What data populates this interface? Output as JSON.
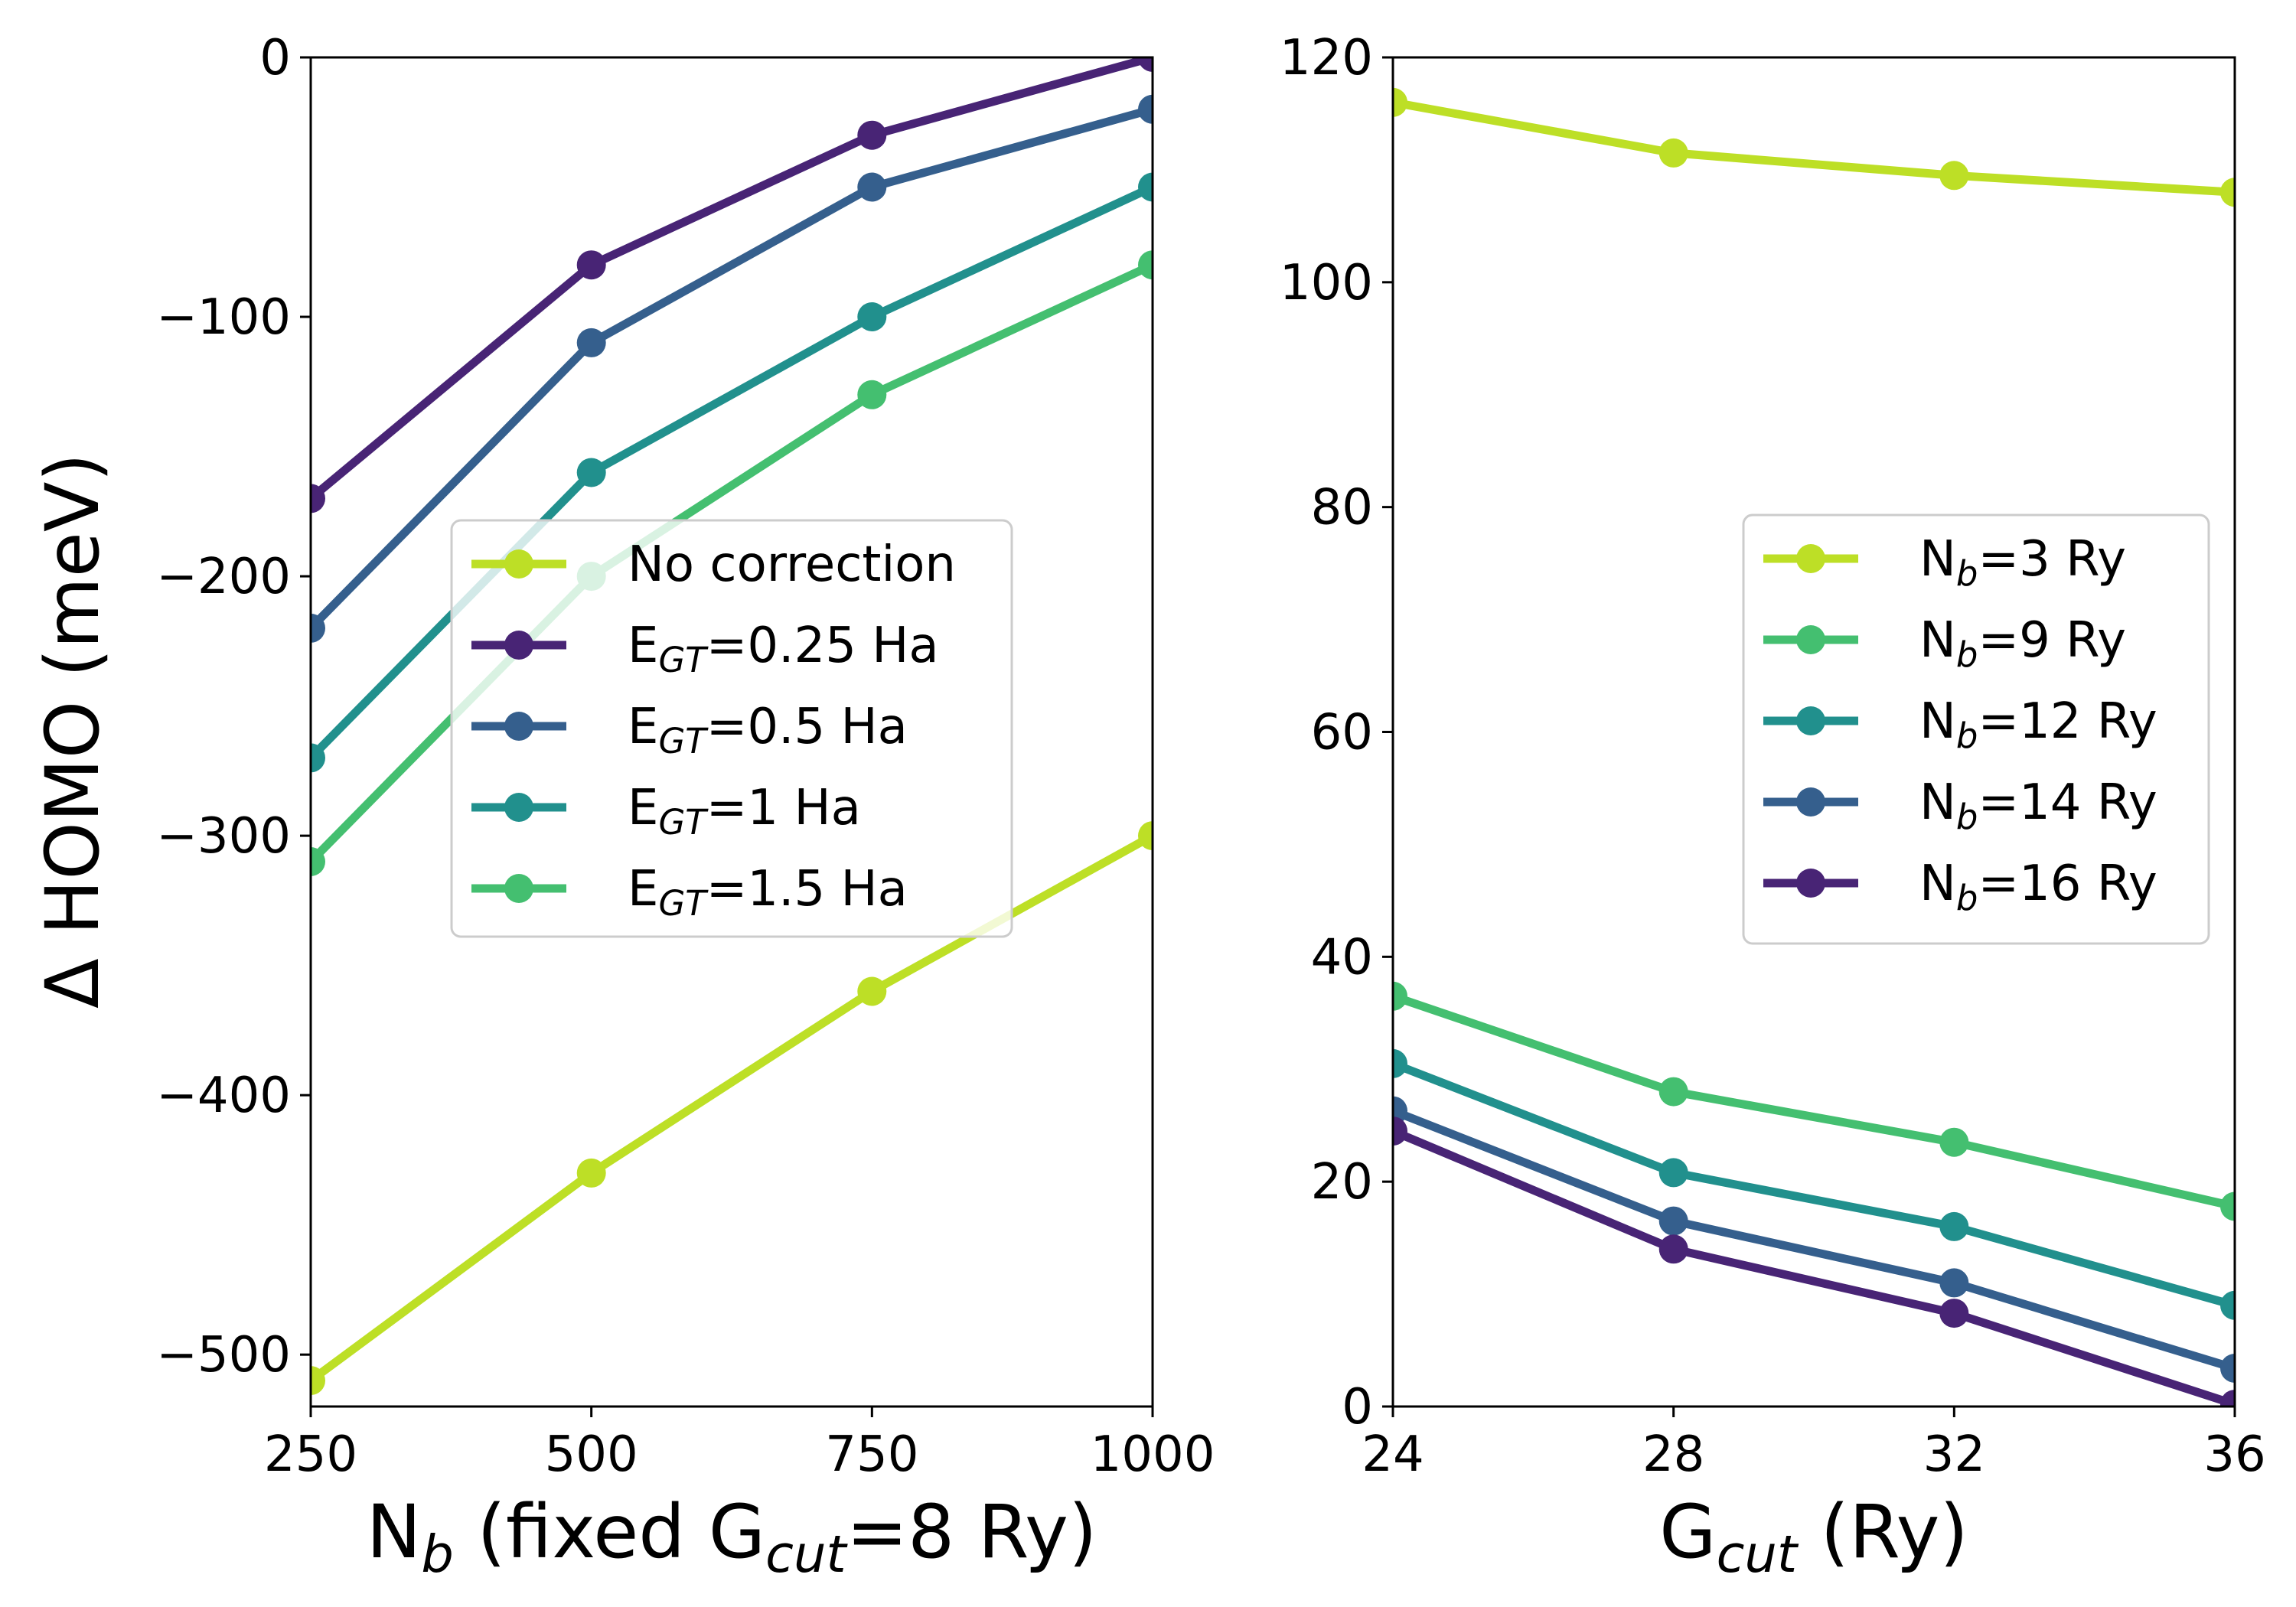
{
  "figure": {
    "ylabel": "Δ HOMO (meV)"
  },
  "chart_data": [
    {
      "type": "line",
      "xlabel": {
        "main": "N",
        "sub": "b",
        "rest1": " (fixed G",
        "sub2": "cut",
        "rest2": "=8 Ry)"
      },
      "ylabel": "Δ HOMO (meV)",
      "xlim": [
        250,
        1000
      ],
      "ylim": [
        -520,
        0
      ],
      "xticks": [
        250,
        500,
        750,
        1000
      ],
      "xtick_labels": [
        "250",
        "500",
        "750",
        "1000"
      ],
      "yticks": [
        0,
        -100,
        -200,
        -300,
        -400,
        -500
      ],
      "ytick_labels": [
        "0",
        "−100",
        "−200",
        "−300",
        "−400",
        "−500"
      ],
      "grid": false,
      "legend_position": "center-right",
      "series": [
        {
          "name": "No correction",
          "label_parts": {
            "main": "No correction"
          },
          "color": "#bddf26",
          "x": [
            250,
            500,
            750,
            1000
          ],
          "y": [
            -510,
            -430,
            -360,
            -300
          ]
        },
        {
          "name": "EGT=0.25 Ha",
          "label_parts": {
            "main": "E",
            "sub": "GT",
            "rest": "=0.25 Ha"
          },
          "color": "#482475",
          "x": [
            250,
            500,
            750,
            1000
          ],
          "y": [
            -170,
            -80,
            -30,
            0
          ]
        },
        {
          "name": "EGT=0.5 Ha",
          "label_parts": {
            "main": "E",
            "sub": "GT",
            "rest": "=0.5 Ha"
          },
          "color": "#355f8d",
          "x": [
            250,
            500,
            750,
            1000
          ],
          "y": [
            -220,
            -110,
            -50,
            -20
          ]
        },
        {
          "name": "EGT=1 Ha",
          "label_parts": {
            "main": "E",
            "sub": "GT",
            "rest": "=1 Ha"
          },
          "color": "#21908d",
          "x": [
            250,
            500,
            750,
            1000
          ],
          "y": [
            -270,
            -160,
            -100,
            -50
          ]
        },
        {
          "name": "EGT=1.5 Ha",
          "label_parts": {
            "main": "E",
            "sub": "GT",
            "rest": "=1.5 Ha"
          },
          "color": "#44bf70",
          "x": [
            250,
            500,
            750,
            1000
          ],
          "y": [
            -310,
            -200,
            -130,
            -80
          ]
        }
      ]
    },
    {
      "type": "line",
      "xlabel": {
        "main": "G",
        "sub": "cut",
        "rest1": " (Ry)"
      },
      "xlim": [
        24,
        36
      ],
      "ylim": [
        0,
        120
      ],
      "xticks": [
        24,
        28,
        32,
        36
      ],
      "xtick_labels": [
        "24",
        "28",
        "32",
        "36"
      ],
      "yticks": [
        0,
        20,
        40,
        60,
        80,
        100,
        120
      ],
      "ytick_labels": [
        "0",
        "20",
        "40",
        "60",
        "80",
        "100",
        "120"
      ],
      "grid": false,
      "legend_position": "center-right",
      "series": [
        {
          "name": "Nb=3 Ry",
          "label_parts": {
            "main": "N",
            "sub": "b",
            "rest": "=3 Ry"
          },
          "color": "#bddf26",
          "x": [
            24,
            28,
            32,
            36
          ],
          "y": [
            116,
            111.5,
            109.5,
            108
          ]
        },
        {
          "name": "Nb=9 Ry",
          "label_parts": {
            "main": "N",
            "sub": "b",
            "rest": "=9 Ry"
          },
          "color": "#44bf70",
          "x": [
            24,
            28,
            32,
            36
          ],
          "y": [
            36.5,
            28,
            23.5,
            17.8
          ]
        },
        {
          "name": "Nb=12 Ry",
          "label_parts": {
            "main": "N",
            "sub": "b",
            "rest": "=12 Ry"
          },
          "color": "#21908d",
          "x": [
            24,
            28,
            32,
            36
          ],
          "y": [
            30.5,
            20.8,
            16,
            9
          ]
        },
        {
          "name": "Nb=14 Ry",
          "label_parts": {
            "main": "N",
            "sub": "b",
            "rest": "=14 Ry"
          },
          "color": "#355f8d",
          "x": [
            24,
            28,
            32,
            36
          ],
          "y": [
            26.3,
            16.5,
            11,
            3.4
          ]
        },
        {
          "name": "Nb=16 Ry",
          "label_parts": {
            "main": "N",
            "sub": "b",
            "rest": "=16 Ry"
          },
          "color": "#482475",
          "x": [
            24,
            28,
            32,
            36
          ],
          "y": [
            24.5,
            14,
            8.3,
            0.2
          ]
        }
      ]
    }
  ]
}
